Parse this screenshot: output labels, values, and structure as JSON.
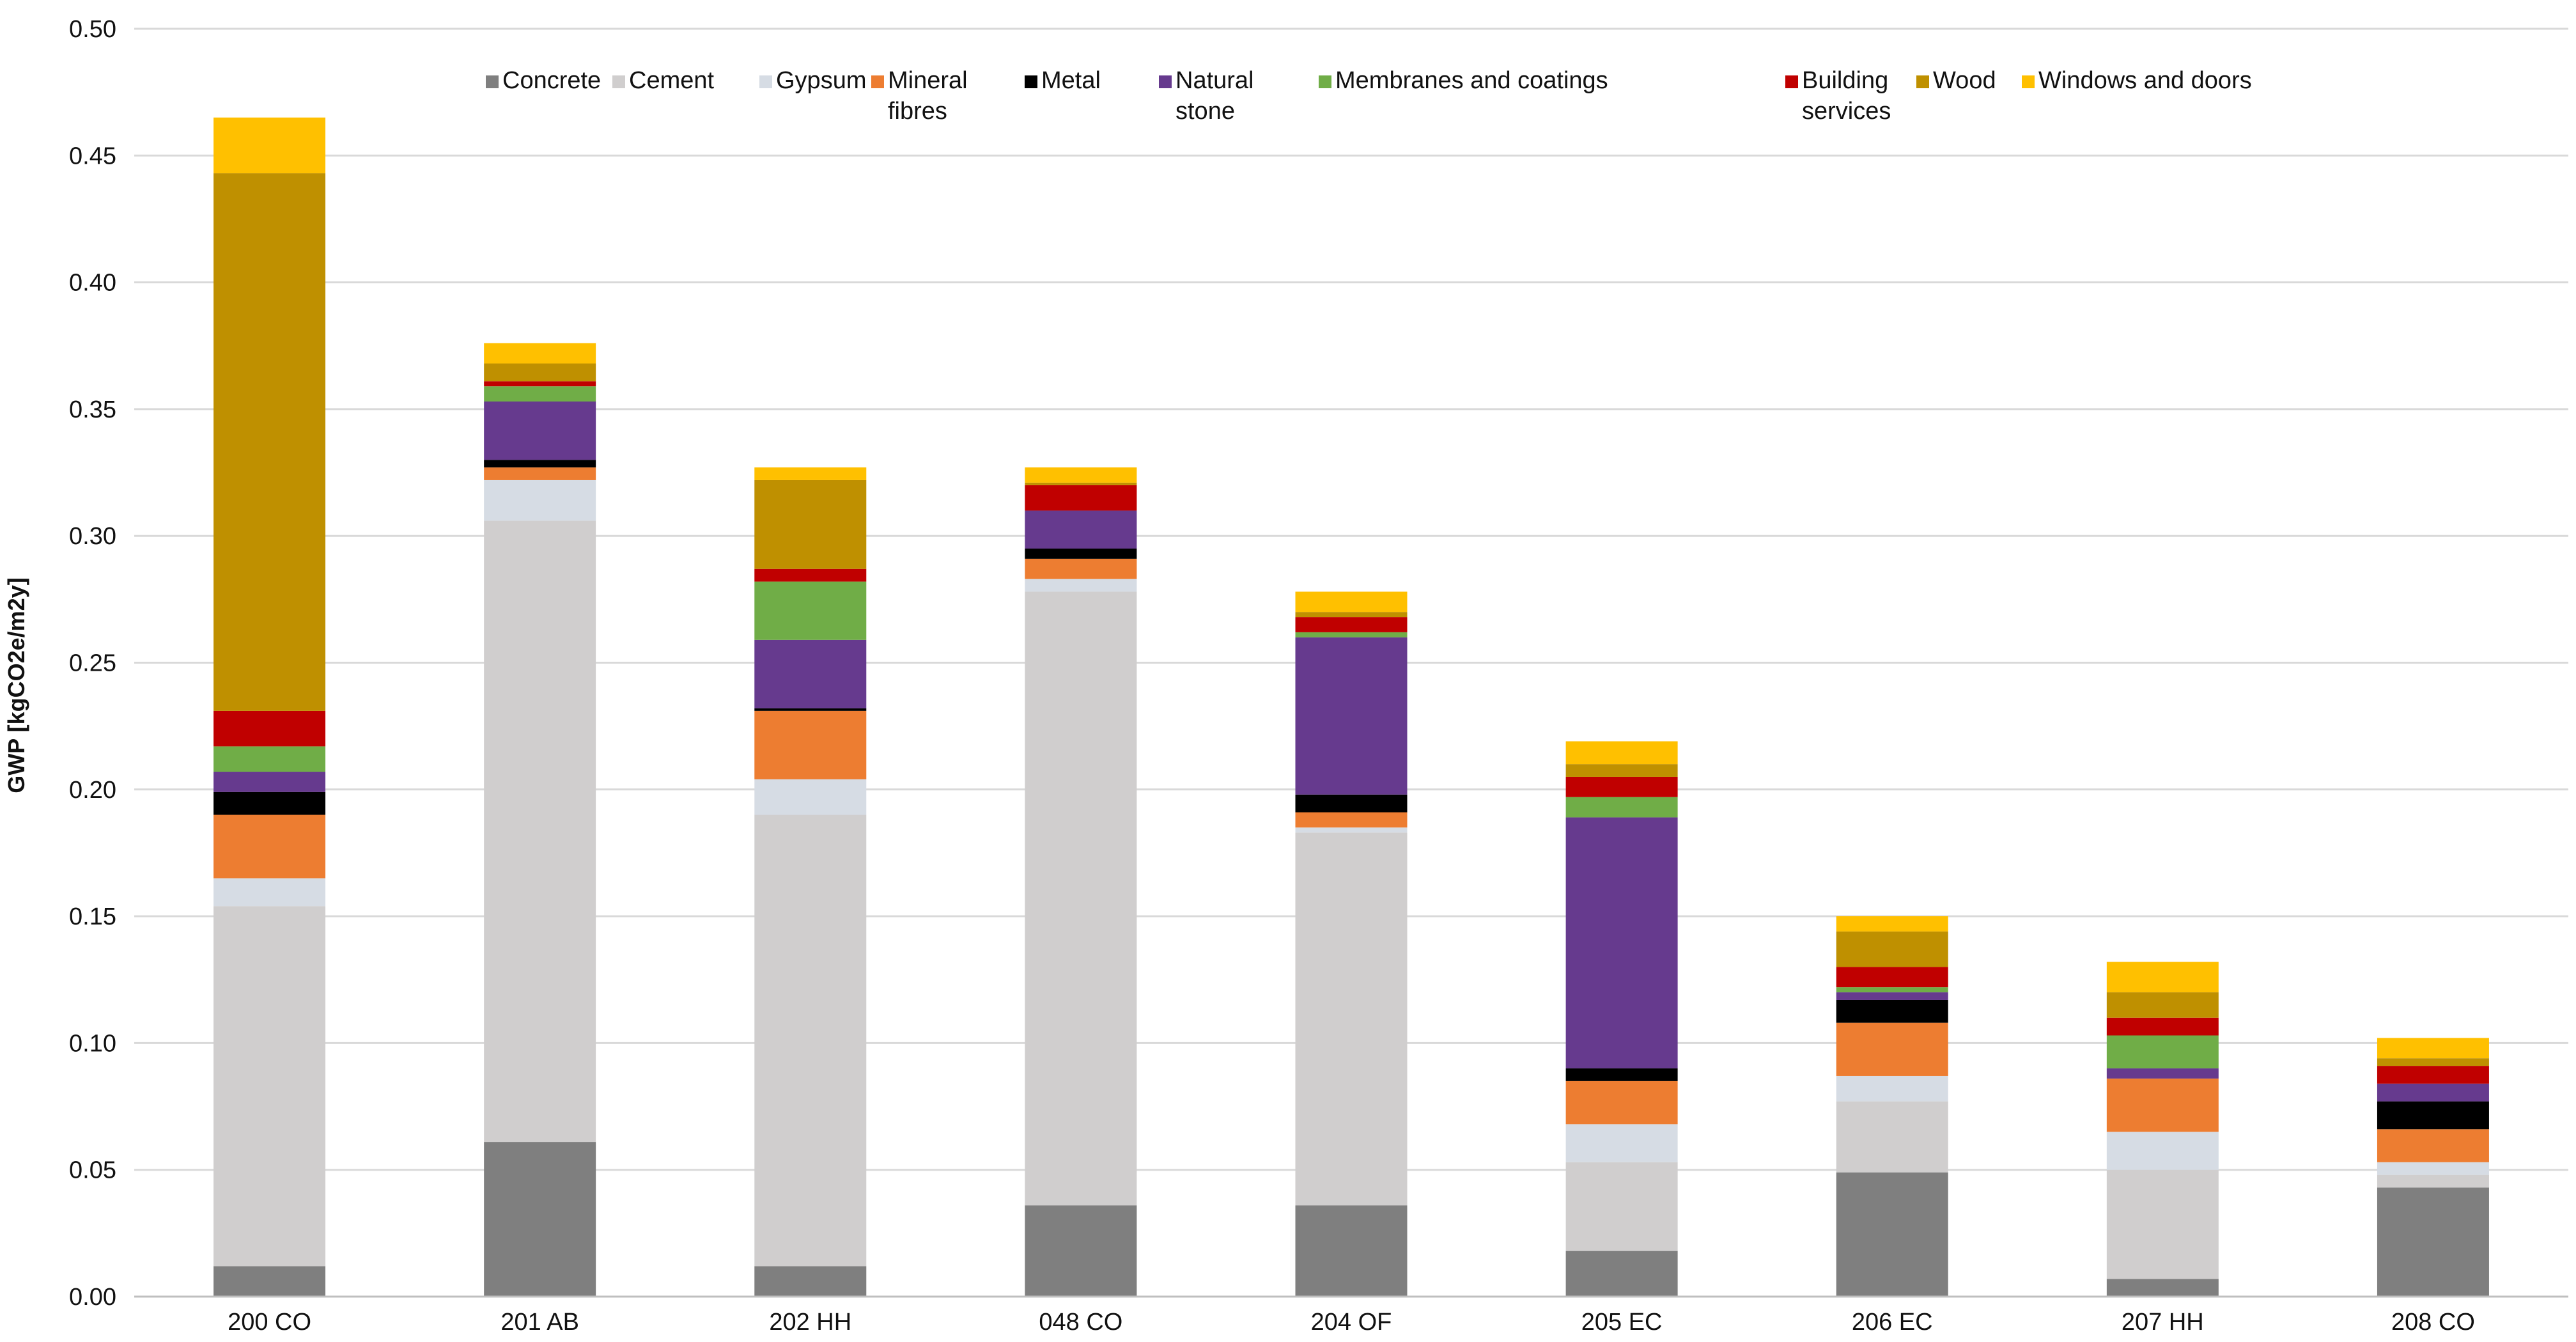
{
  "chart_data": {
    "type": "bar",
    "stacked": true,
    "title": "",
    "xlabel": "",
    "ylabel": "GWP [kgCO2e/m2y]",
    "ylim": [
      0,
      0.5
    ],
    "yticks": [
      "0.00",
      "0.05",
      "0.10",
      "0.15",
      "0.20",
      "0.25",
      "0.30",
      "0.35",
      "0.40",
      "0.45",
      "0.50"
    ],
    "grid": true,
    "legend_position": "top",
    "categories": [
      "200 CO",
      "201 AB",
      "202 HH",
      "048 CO",
      "204 OF",
      "205 EC",
      "206 EC",
      "207 HH",
      "208 CO"
    ],
    "series": [
      {
        "name": "Concrete",
        "legend_lines": [
          "Concrete"
        ],
        "color": "#7f7f7f",
        "values": [
          0.012,
          0.061,
          0.012,
          0.036,
          0.036,
          0.018,
          0.049,
          0.007,
          0.043
        ]
      },
      {
        "name": "Cement",
        "legend_lines": [
          "Cement"
        ],
        "color": "#d0cece",
        "values": [
          0.142,
          0.245,
          0.178,
          0.242,
          0.147,
          0.035,
          0.028,
          0.043,
          0.005
        ]
      },
      {
        "name": "Gypsum",
        "legend_lines": [
          "Gypsum"
        ],
        "color": "#d6dce4",
        "values": [
          0.011,
          0.016,
          0.014,
          0.005,
          0.002,
          0.015,
          0.01,
          0.015,
          0.005
        ]
      },
      {
        "name": "Mineral fibres",
        "legend_lines": [
          "Mineral",
          "fibres"
        ],
        "color": "#ed7d31",
        "values": [
          0.025,
          0.005,
          0.027,
          0.008,
          0.006,
          0.017,
          0.021,
          0.021,
          0.013
        ]
      },
      {
        "name": "Metal",
        "legend_lines": [
          "Metal"
        ],
        "color": "#000000",
        "values": [
          0.009,
          0.003,
          0.001,
          0.004,
          0.007,
          0.005,
          0.009,
          0.0,
          0.011
        ]
      },
      {
        "name": "Natural stone",
        "legend_lines": [
          "Natural",
          "stone"
        ],
        "color": "#663a8e",
        "values": [
          0.008,
          0.023,
          0.027,
          0.015,
          0.062,
          0.099,
          0.003,
          0.004,
          0.007
        ]
      },
      {
        "name": "Membranes and coatings",
        "legend_lines": [
          "Membranes and coatings"
        ],
        "color": "#70ad47",
        "values": [
          0.01,
          0.006,
          0.023,
          0.0,
          0.002,
          0.008,
          0.002,
          0.013,
          0.0
        ]
      },
      {
        "name": "",
        "legend_lines": [
          "",
          ""
        ],
        "color": "#ffffff",
        "values": [
          0,
          0,
          0,
          0,
          0,
          0,
          0,
          0,
          0
        ]
      },
      {
        "name": "Building services",
        "legend_lines": [
          "Building",
          "services"
        ],
        "color": "#c00000",
        "values": [
          0.014,
          0.002,
          0.005,
          0.01,
          0.006,
          0.008,
          0.008,
          0.007,
          0.007
        ]
      },
      {
        "name": "Wood",
        "legend_lines": [
          "Wood"
        ],
        "color": "#bf9000",
        "values": [
          0.212,
          0.007,
          0.035,
          0.001,
          0.002,
          0.005,
          0.014,
          0.01,
          0.003
        ]
      },
      {
        "name": "Windows and doors",
        "legend_lines": [
          "Windows and doors"
        ],
        "color": "#ffc000",
        "values": [
          0.022,
          0.008,
          0.005,
          0.006,
          0.008,
          0.009,
          0.006,
          0.012,
          0.008
        ]
      }
    ]
  }
}
